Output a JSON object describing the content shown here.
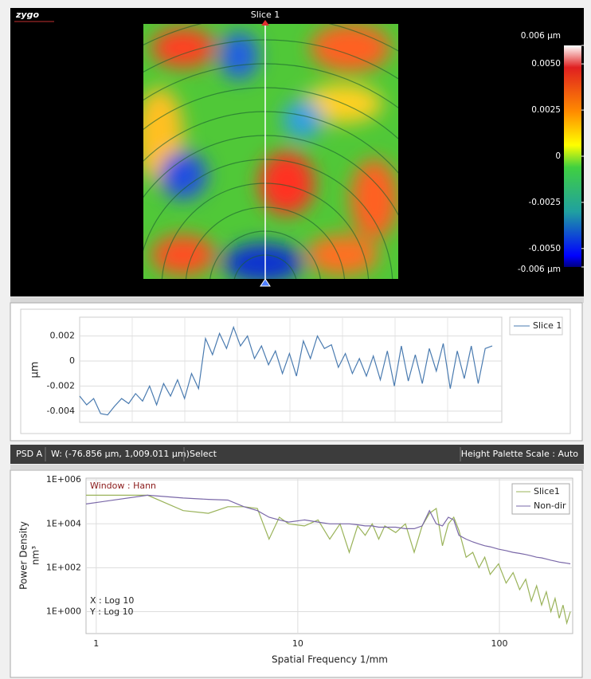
{
  "image": {
    "logo": "zygo",
    "slice_label": "Slice 1"
  },
  "colorbar": {
    "lim": [
      -0.006,
      0.006
    ],
    "ticks": [
      {
        "value": 0.006,
        "label": "0.006 µm"
      },
      {
        "value": 0.005,
        "label": "0.0050"
      },
      0.0025,
      0,
      -0.0025,
      {
        "value": -0.005,
        "label": "-0.0050"
      },
      {
        "value": -0.006,
        "label": "-0.006 µm"
      }
    ]
  },
  "status_bar": [
    "PSD A",
    "W: (-76.856 µm, 1,009.011 µm)",
    "Select",
    "Height Palette Scale : Auto"
  ],
  "chart_data": [
    {
      "type": "line",
      "y_label": "µm",
      "legend": "right",
      "grid": true,
      "ylim": [
        -0.0049,
        0.0035
      ],
      "yticks": [
        0.002,
        0,
        -0.002,
        -0.004
      ],
      "series": [
        {
          "name": "Slice 1",
          "color": "#4a7bb0",
          "values": [
            -0.0028,
            -0.0035,
            -0.003,
            -0.0042,
            -0.0043,
            -0.0036,
            -0.003,
            -0.0034,
            -0.0026,
            -0.0032,
            -0.002,
            -0.0035,
            -0.0018,
            -0.0028,
            -0.0015,
            -0.003,
            -0.001,
            -0.0022,
            0.0018,
            0.0005,
            0.0022,
            0.001,
            0.0027,
            0.0012,
            0.002,
            0.0002,
            0.0012,
            -0.0003,
            0.0008,
            -0.001,
            0.0006,
            -0.0012,
            0.0016,
            0.0002,
            0.002,
            0.001,
            0.0013,
            -0.0005,
            0.0006,
            -0.001,
            0.0002,
            -0.0012,
            0.0004,
            -0.0015,
            0.0008,
            -0.002,
            0.0012,
            -0.0016,
            0.0005,
            -0.0018,
            0.001,
            -0.0008,
            0.0014,
            -0.0022,
            0.0008,
            -0.0014,
            0.0012,
            -0.0018,
            0.001,
            0.0012
          ]
        }
      ]
    },
    {
      "type": "line",
      "x_label": "Spatial Frequency 1/mm",
      "y_label": "Power Density",
      "y_unit": "nm³",
      "annotations": [
        "Window : Hann",
        "X : Log 10",
        "Y : Log 10"
      ],
      "xlog": true,
      "ylog": true,
      "grid": true,
      "legend": "upper right",
      "xlim": [
        0.89,
        231
      ],
      "ylim": [
        0.1,
        1200000
      ],
      "xticks": [
        1,
        10,
        100
      ],
      "yticks": [
        {
          "value": 1,
          "label": "1E+000"
        },
        {
          "value": 100,
          "label": "1E+002"
        },
        {
          "value": 10000,
          "label": "1E+004"
        },
        {
          "value": 1000000,
          "label": "1E+006"
        }
      ],
      "x": [
        0.89,
        1.8,
        2.7,
        3.6,
        4.5,
        5.4,
        6.3,
        7.2,
        8.1,
        9,
        10.8,
        12.6,
        14.4,
        16.2,
        18,
        19.8,
        21.6,
        23.4,
        25.2,
        27,
        30.6,
        34.2,
        37.8,
        41.4,
        45,
        48.6,
        52.2,
        55.8,
        59.4,
        63,
        68.4,
        73.8,
        79.2,
        84.6,
        90,
        99,
        108,
        117,
        126,
        135,
        144,
        153,
        162,
        171,
        180,
        189,
        198,
        207,
        216,
        225
      ],
      "series": [
        {
          "name": "Slice1",
          "color": "#9ab35a",
          "values": [
            200000,
            200000,
            40000,
            30000,
            60000,
            60000,
            50000,
            2000,
            20000,
            10000,
            8000,
            15000,
            2000,
            10000,
            500,
            8000,
            3000,
            10000,
            2000,
            8000,
            4000,
            10000,
            500,
            8000,
            30000,
            50000,
            1000,
            10000,
            20000,
            5000,
            300,
            500,
            100,
            300,
            50,
            150,
            20,
            60,
            10,
            30,
            3,
            15,
            2,
            8,
            1,
            4,
            0.5,
            2,
            0.3,
            1
          ]
        },
        {
          "name": "Non-dir",
          "color": "#7a68a8",
          "values": [
            80000,
            200000,
            150000,
            130000,
            120000,
            60000,
            40000,
            20000,
            15000,
            12000,
            15000,
            12000,
            10000,
            10000,
            10000,
            9000,
            8000,
            8000,
            7000,
            7000,
            7000,
            6000,
            6000,
            8000,
            40000,
            10000,
            8000,
            20000,
            15000,
            3000,
            2000,
            1500,
            1200,
            1000,
            900,
            700,
            600,
            500,
            450,
            400,
            350,
            300,
            280,
            250,
            220,
            200,
            180,
            170,
            160,
            150
          ]
        }
      ]
    }
  ]
}
